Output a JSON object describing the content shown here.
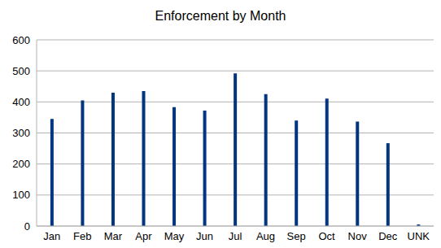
{
  "chart_data": {
    "type": "bar",
    "title": "Enforcement by Month",
    "categories": [
      "Jan",
      "Feb",
      "Mar",
      "Apr",
      "May",
      "Jun",
      "Jul",
      "Aug",
      "Sep",
      "Oct",
      "Nov",
      "Dec",
      "UNK"
    ],
    "values": [
      345,
      405,
      430,
      435,
      383,
      372,
      492,
      425,
      340,
      411,
      337,
      267,
      5
    ],
    "color": "#003580",
    "ylim": [
      0,
      600
    ],
    "yticks": [
      0,
      100,
      200,
      300,
      400,
      500,
      600
    ],
    "grid": true
  }
}
